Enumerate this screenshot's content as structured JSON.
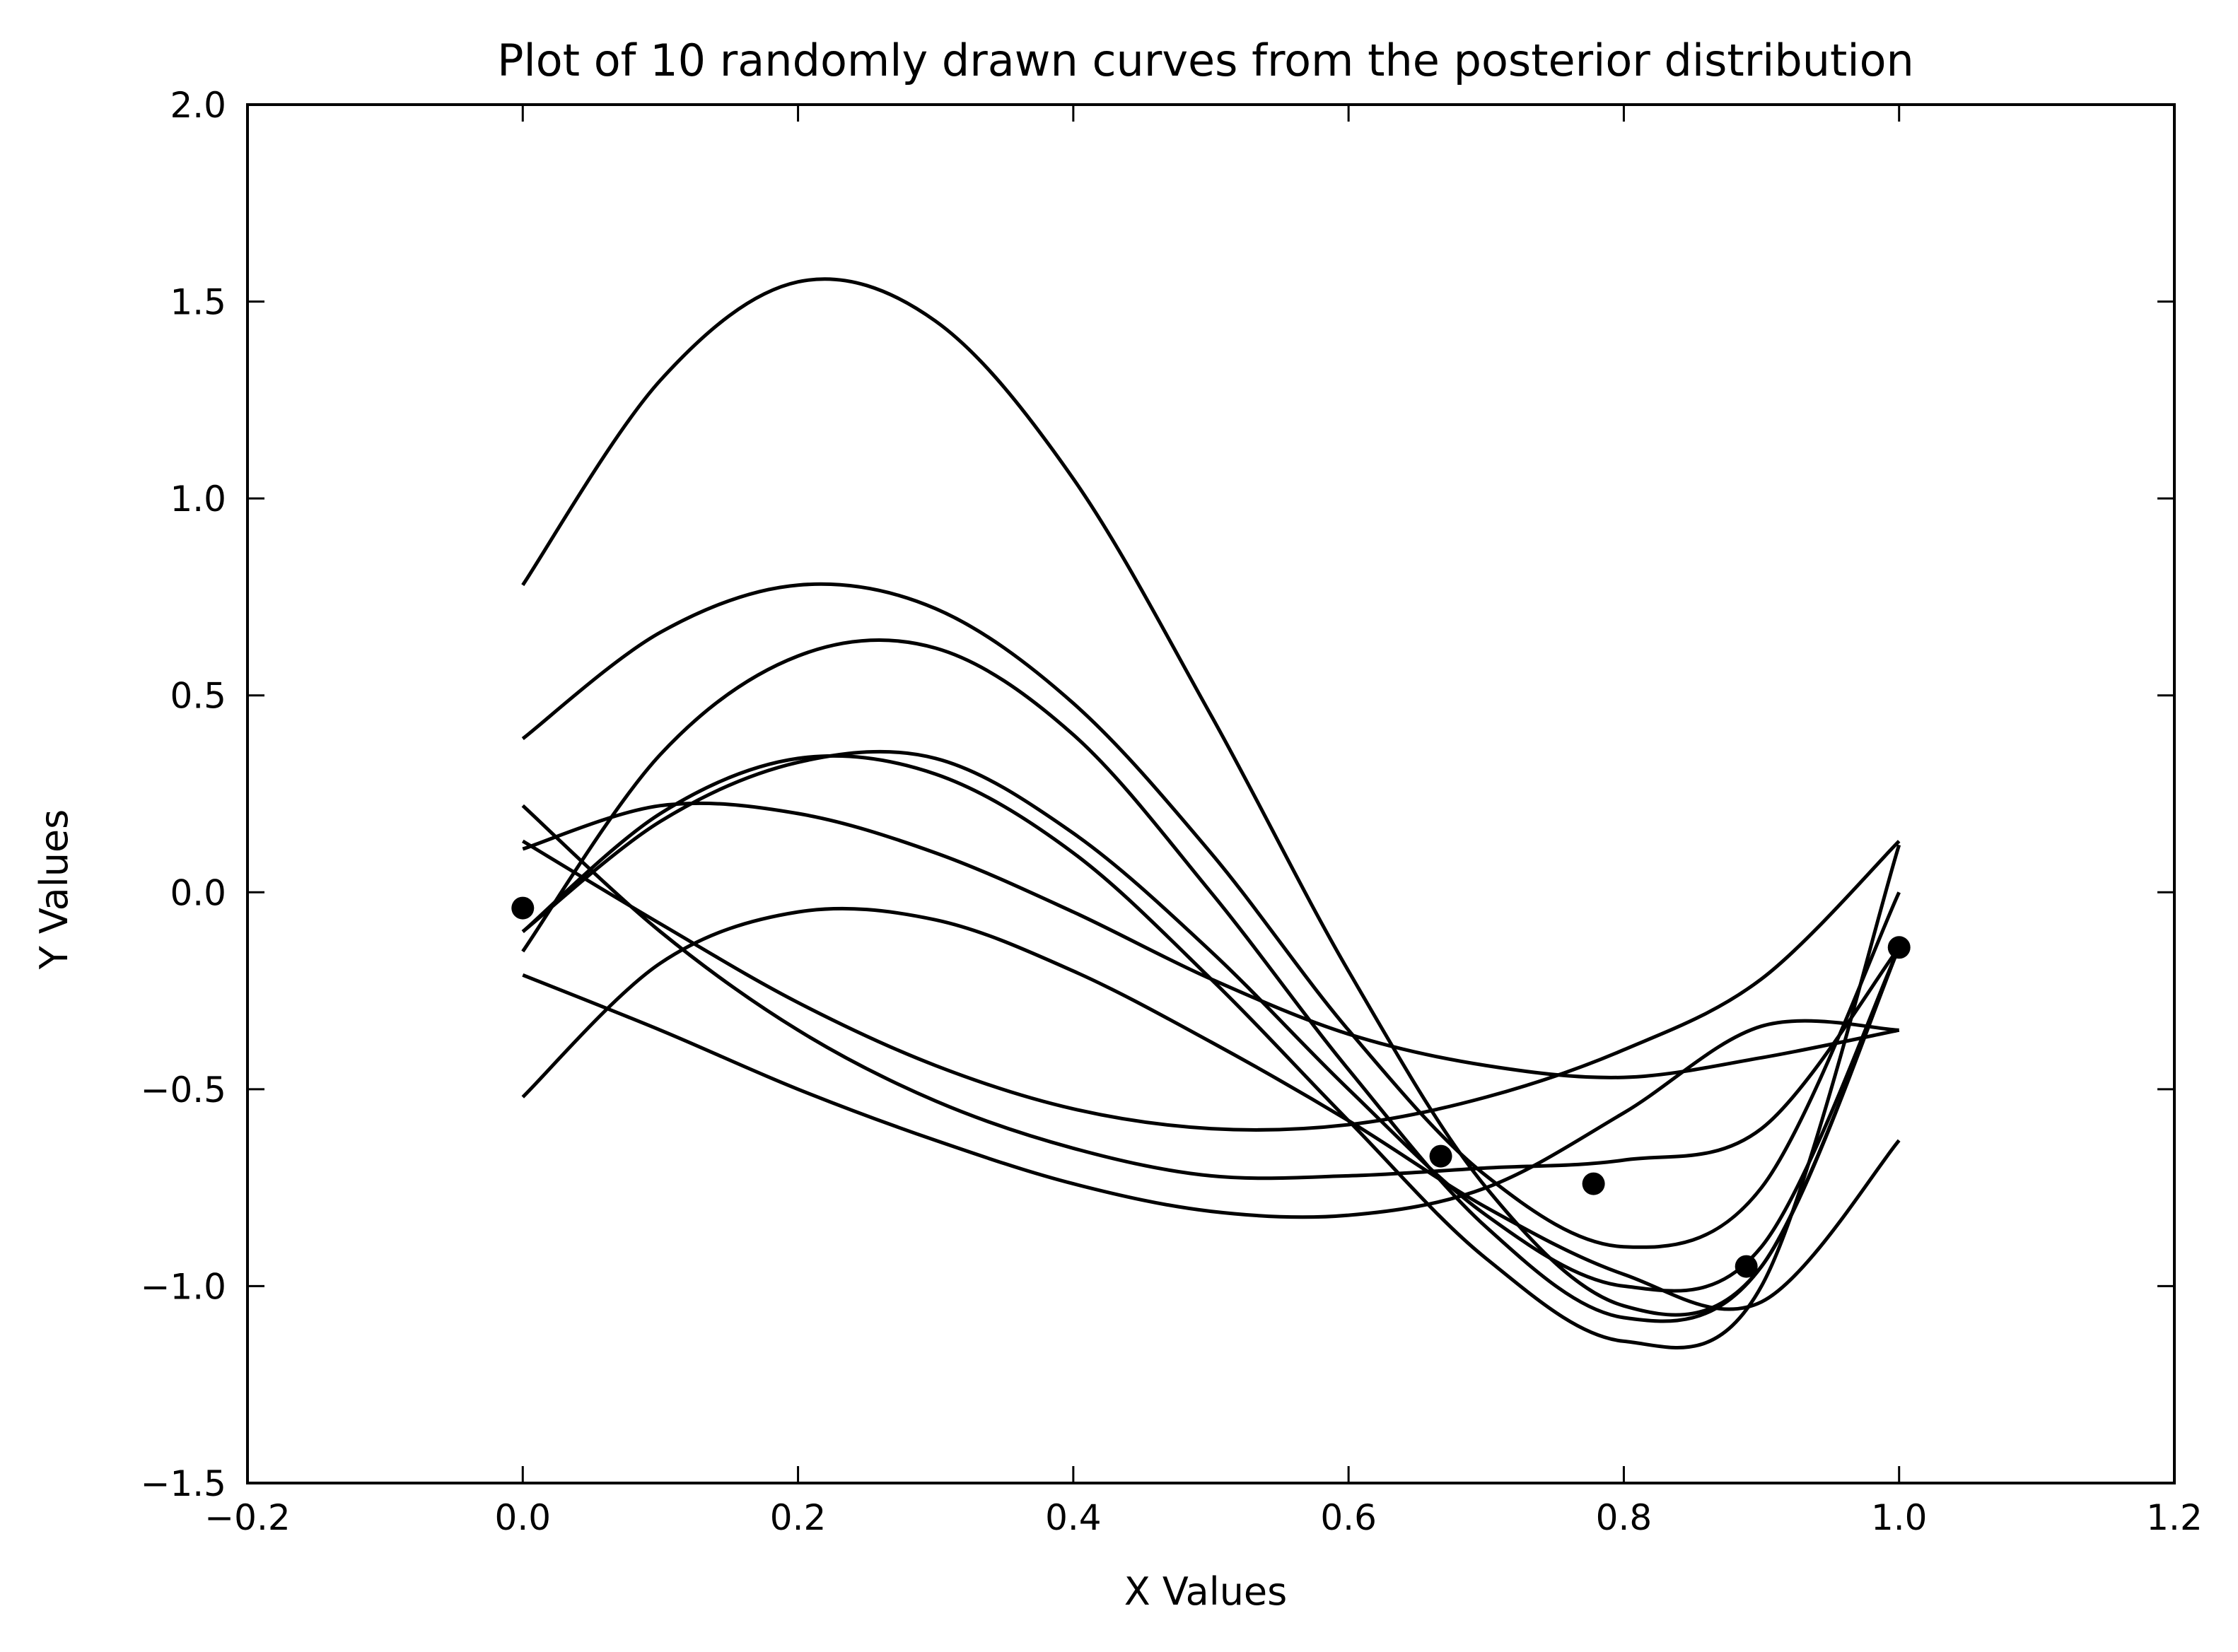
{
  "chart_data": {
    "type": "line",
    "title": "Plot of 10 randomly drawn curves from the posterior distribution",
    "xlabel": "X Values",
    "ylabel": "Y Values",
    "xlim": [
      -0.2,
      1.2
    ],
    "ylim": [
      -1.5,
      2.0
    ],
    "xticks": [
      "−0.2",
      "0.0",
      "0.2",
      "0.4",
      "0.6",
      "0.8",
      "1.0",
      "1.2"
    ],
    "yticks": [
      "−1.5",
      "−1.0",
      "−0.5",
      "0.0",
      "0.5",
      "1.0",
      "1.5",
      "2.0"
    ],
    "grid": false,
    "legend": "none",
    "line_color": "#000000",
    "points": {
      "x": [
        0.0,
        0.667,
        0.778,
        0.889,
        1.0
      ],
      "y": [
        -0.04,
        -0.67,
        -0.74,
        -0.95,
        -0.14
      ]
    },
    "curve_x": [
      0.0,
      0.1,
      0.2,
      0.3,
      0.4,
      0.5,
      0.6,
      0.7,
      0.8,
      0.9,
      1.0
    ],
    "series": [
      {
        "values": [
          0.78,
          1.3,
          1.55,
          1.45,
          1.05,
          0.45,
          -0.2,
          -0.75,
          -1.05,
          -0.95,
          -0.14
        ]
      },
      {
        "values": [
          0.39,
          0.66,
          0.78,
          0.72,
          0.48,
          0.1,
          -0.35,
          -0.72,
          -0.9,
          -0.75,
          0.0
        ]
      },
      {
        "values": [
          -0.15,
          0.35,
          0.6,
          0.62,
          0.4,
          0.0,
          -0.45,
          -0.85,
          -1.08,
          -0.95,
          -0.14
        ]
      },
      {
        "values": [
          -0.1,
          0.18,
          0.33,
          0.34,
          0.15,
          -0.15,
          -0.5,
          -0.82,
          -1.0,
          -0.9,
          -0.14
        ]
      },
      {
        "values": [
          -0.1,
          0.2,
          0.34,
          0.3,
          0.1,
          -0.22,
          -0.58,
          -0.93,
          -1.14,
          -1.0,
          0.12
        ]
      },
      {
        "values": [
          0.11,
          0.22,
          0.2,
          0.1,
          -0.05,
          -0.22,
          -0.36,
          -0.44,
          -0.47,
          -0.42,
          -0.35
        ]
      },
      {
        "values": [
          0.13,
          -0.08,
          -0.28,
          -0.44,
          -0.55,
          -0.6,
          -0.59,
          -0.52,
          -0.4,
          -0.22,
          0.13
        ]
      },
      {
        "values": [
          0.22,
          -0.1,
          -0.35,
          -0.53,
          -0.65,
          -0.72,
          -0.72,
          -0.7,
          -0.68,
          -0.6,
          -0.14
        ]
      },
      {
        "values": [
          -0.21,
          -0.35,
          -0.5,
          -0.63,
          -0.74,
          -0.81,
          -0.82,
          -0.75,
          -0.56,
          -0.34,
          -0.35
        ]
      },
      {
        "values": [
          -0.52,
          -0.18,
          -0.05,
          -0.07,
          -0.2,
          -0.38,
          -0.58,
          -0.8,
          -0.97,
          -1.04,
          -0.63
        ]
      }
    ]
  }
}
